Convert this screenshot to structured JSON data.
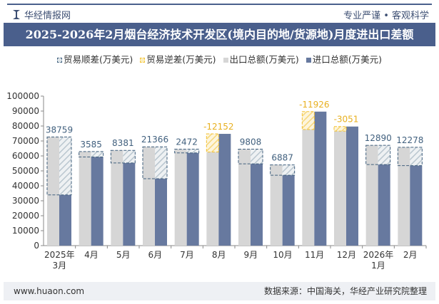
{
  "header": {
    "brand": "华经情报网",
    "slogan": "专业严谨 • 客观科学",
    "title": "2025-2026年2月烟台经济技术开发区(境内目的地/货源地)月度进出口差额"
  },
  "colors": {
    "export": "#d6d6d6",
    "import": "#67799f",
    "surplus": "#41607e",
    "deficit": "#f4c233",
    "title_bg": "#4a5f8c"
  },
  "chart_data": {
    "type": "bar",
    "categories": [
      "2025年\n3月",
      "4月",
      "5月",
      "6月",
      "7月",
      "8月",
      "9月",
      "10月",
      "11月",
      "12月",
      "2026年\n1月",
      "2月"
    ],
    "series": [
      {
        "name": "出口总额(万美元)",
        "values": [
          72700,
          62900,
          63700,
          66100,
          64500,
          62600,
          64500,
          54000,
          77700,
          76600,
          67100,
          65800
        ]
      },
      {
        "name": "进口总额(万美元)",
        "values": [
          33941,
          59315,
          55319,
          44734,
          62028,
          74752,
          54692,
          47113,
          89626,
          79651,
          54210,
          53522
        ]
      }
    ],
    "balance": {
      "surplus_name": "贸易顺差(万美元)",
      "deficit_name": "贸易逆差(万美元)",
      "values": [
        38759,
        3585,
        8381,
        21366,
        2472,
        -12152,
        9808,
        6887,
        -11926,
        -3051,
        12890,
        12278
      ]
    },
    "ylim": [
      0,
      100000
    ],
    "yticks": [
      0,
      10000,
      20000,
      30000,
      40000,
      50000,
      60000,
      70000,
      80000,
      90000,
      100000
    ],
    "legend": "top"
  },
  "footer": {
    "website": "www.huaon.com",
    "source": "数据来源：中国海关，华经产业研究院整理"
  }
}
